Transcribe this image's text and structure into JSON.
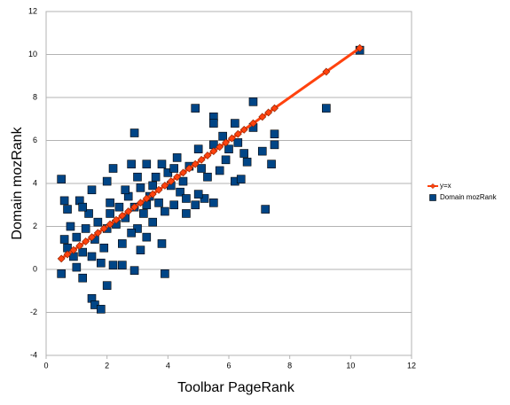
{
  "chart_data": {
    "type": "scatter",
    "xlabel": "Toolbar PageRank",
    "ylabel": "Domain mozRank",
    "xlim": [
      0,
      12
    ],
    "xticks": [
      0,
      2,
      4,
      6,
      8,
      10,
      12
    ],
    "ylim": [
      -4,
      12
    ],
    "yticks": [
      -4,
      -2,
      0,
      2,
      4,
      6,
      8,
      10,
      12
    ],
    "grid": true,
    "legend": "right",
    "series": [
      {
        "name": "y=x",
        "color": "#ff420e",
        "marker": "diamond",
        "line": true,
        "x": [
          0.5,
          0.7,
          0.9,
          1.1,
          1.3,
          1.5,
          1.7,
          1.9,
          2.1,
          2.3,
          2.5,
          2.7,
          2.9,
          3.1,
          3.3,
          3.5,
          3.7,
          3.9,
          4.1,
          4.3,
          4.5,
          4.7,
          4.9,
          5.1,
          5.3,
          5.5,
          5.7,
          5.9,
          6.1,
          6.3,
          6.5,
          6.8,
          7.1,
          7.3,
          7.5,
          9.2,
          10.3
        ],
        "values": [
          0.5,
          0.7,
          0.9,
          1.1,
          1.3,
          1.5,
          1.7,
          1.9,
          2.1,
          2.3,
          2.5,
          2.7,
          2.9,
          3.1,
          3.3,
          3.5,
          3.7,
          3.9,
          4.1,
          4.3,
          4.5,
          4.7,
          4.9,
          5.1,
          5.3,
          5.5,
          5.7,
          5.9,
          6.1,
          6.3,
          6.5,
          6.8,
          7.1,
          7.3,
          7.5,
          9.2,
          10.3
        ]
      },
      {
        "name": "Domain mozRank",
        "color": "#004586",
        "marker": "square",
        "line": false,
        "x": [
          0.5,
          0.5,
          1.5,
          1.6,
          1.8,
          2,
          3.9,
          2.9,
          4.9,
          5.5,
          5.5,
          6.8,
          9.2,
          10.3,
          7.2,
          6.2,
          6.4,
          7.5,
          7.5,
          7.1,
          5.2,
          4.9,
          5.5,
          5.8,
          6.2,
          3.8,
          3.3,
          3.1,
          2.5,
          2.2,
          1.2,
          1.8,
          2.9,
          1.0,
          0.6,
          0.7,
          1.5,
          2.0,
          2.2,
          2.8,
          3.3,
          3.8,
          4.3,
          5.0,
          5.5,
          6.0,
          6.8,
          6.5,
          5.3,
          5.7,
          4.4,
          4.2,
          3.9,
          3.5,
          3.0,
          2.5,
          1.2,
          1.0,
          0.8,
          0.6,
          1.4,
          1.7,
          2.1,
          2.4,
          2.7,
          3.1,
          3.4,
          3.6,
          4.0,
          4.5,
          4.7,
          1.1,
          1.3,
          1.6,
          1.9,
          2.3,
          2.6,
          2.8,
          3.2,
          3.7,
          4.1,
          4.6,
          5.1,
          5.9,
          6.3,
          0.9,
          1.5,
          2.0,
          2.6,
          3.0,
          3.5,
          4.2,
          0.7,
          1.2,
          2.1,
          2.9,
          3.3,
          4.6,
          5.0,
          6.6,
          7.4
        ],
        "values": [
          4.2,
          -0.2,
          -1.35,
          -1.65,
          -1.85,
          -0.75,
          -0.2,
          6.35,
          7.5,
          7.1,
          6.8,
          7.8,
          7.5,
          10.2,
          2.8,
          4.1,
          4.2,
          5.8,
          6.3,
          5.5,
          3.3,
          3.0,
          3.1,
          6.2,
          6.8,
          1.2,
          1.5,
          0.9,
          0.2,
          0.2,
          -0.4,
          0.3,
          -0.05,
          0.1,
          3.2,
          2.8,
          3.7,
          4.1,
          4.7,
          4.9,
          4.9,
          4.9,
          5.2,
          5.6,
          5.8,
          5.6,
          6.6,
          5.4,
          4.3,
          4.6,
          3.6,
          3.0,
          2.7,
          2.2,
          1.9,
          1.2,
          0.8,
          1.5,
          2.0,
          1.4,
          2.6,
          2.2,
          3.1,
          2.9,
          3.4,
          3.8,
          3.4,
          4.3,
          4.5,
          4.1,
          4.8,
          3.2,
          1.9,
          1.4,
          1.0,
          2.1,
          2.4,
          1.7,
          2.6,
          3.1,
          3.9,
          3.3,
          4.7,
          5.1,
          5.9,
          0.6,
          0.6,
          1.9,
          3.7,
          4.3,
          3.9,
          4.7,
          1.0,
          2.9,
          2.6,
          2.9,
          3.0,
          2.6,
          3.5,
          5.0,
          4.9
        ]
      }
    ]
  }
}
